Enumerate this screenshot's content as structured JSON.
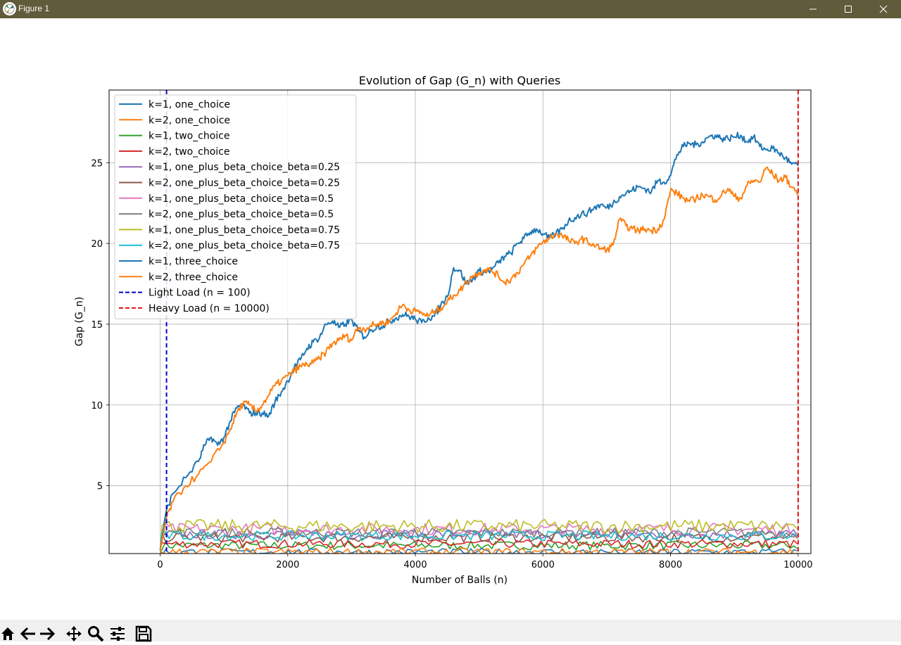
{
  "window": {
    "title": "Figure 1",
    "app_icon": "matplotlib-icon"
  },
  "window_controls": [
    "minimize-icon",
    "maximize-icon",
    "close-icon"
  ],
  "toolbar": {
    "buttons": [
      "home-icon",
      "back-icon",
      "forward-icon",
      "pan-icon",
      "zoom-icon",
      "configure-subplots-icon",
      "save-icon"
    ]
  },
  "chart_data": {
    "type": "line",
    "title": "Evolution of Gap (G_n) with Queries",
    "xlabel": "Number of Balls (n)",
    "ylabel": "Gap (G_n)",
    "xlim": [
      -800,
      10200
    ],
    "ylim": [
      0.8,
      29.5
    ],
    "xticks": [
      0,
      2000,
      4000,
      6000,
      8000,
      10000
    ],
    "yticks": [
      5,
      10,
      15,
      20,
      25
    ],
    "grid": true,
    "legend_position": "upper left",
    "series": [
      {
        "name": "k=1, one_choice",
        "color": "#1f77b4",
        "style": "solid",
        "x": [
          0,
          100,
          200,
          400,
          600,
          700,
          800,
          900,
          1000,
          1100,
          1200,
          1300,
          1400,
          1500,
          1600,
          1700,
          1800,
          1900,
          2000,
          2100,
          2200,
          2300,
          2400,
          2500,
          2600,
          2700,
          2800,
          2900,
          3000,
          3100,
          3200,
          3300,
          3400,
          3500,
          3600,
          3700,
          3800,
          3900,
          4000,
          4100,
          4200,
          4300,
          4400,
          4500,
          4600,
          4700,
          4800,
          4900,
          5000,
          5100,
          5200,
          5300,
          5400,
          5500,
          5600,
          5700,
          5800,
          5900,
          6000,
          6100,
          6200,
          6300,
          6400,
          6500,
          6600,
          6700,
          6800,
          6900,
          7000,
          7100,
          7200,
          7300,
          7400,
          7500,
          7600,
          7700,
          7800,
          7900,
          8000,
          8100,
          8200,
          8300,
          8400,
          8500,
          8600,
          8700,
          8800,
          8900,
          9000,
          9100,
          9200,
          9300,
          9400,
          9500,
          9600,
          9700,
          9800,
          9900,
          10000
        ],
        "y": [
          1,
          3.5,
          4.5,
          5.5,
          6.5,
          7.5,
          8,
          7.5,
          8,
          9,
          9.8,
          10,
          9.5,
          9.5,
          9.5,
          9.3,
          10.2,
          10.8,
          11.5,
          12.3,
          12.8,
          13.5,
          13.9,
          14.2,
          15,
          15.2,
          14.8,
          15,
          15.3,
          14.6,
          14.2,
          14.6,
          14.9,
          14.9,
          15.2,
          15.4,
          15.6,
          15.5,
          15.3,
          15.1,
          15.4,
          15.5,
          16.2,
          16.7,
          18.5,
          18.3,
          17.5,
          17.8,
          18.3,
          18.2,
          18.4,
          18.8,
          19.2,
          19.4,
          20,
          20.3,
          20.7,
          20.9,
          20.6,
          20.3,
          20.6,
          20.9,
          21.4,
          21.6,
          21.8,
          21.9,
          22.2,
          22.4,
          22.2,
          22.5,
          22.9,
          23.1,
          23.3,
          23.5,
          23.4,
          23.2,
          23.9,
          23.8,
          24.2,
          25.5,
          26,
          26.2,
          26.1,
          26.3,
          26.6,
          26.7,
          26.5,
          26.5,
          26.6,
          26.7,
          26.3,
          26.6,
          26,
          25.8,
          25.9,
          25.6,
          25.3,
          24.9,
          24.8
        ]
      },
      {
        "name": "k=2, one_choice",
        "color": "#ff7f0e",
        "style": "solid",
        "x": [
          0,
          100,
          200,
          400,
          600,
          800,
          1000,
          1100,
          1200,
          1300,
          1400,
          1500,
          1600,
          1700,
          1800,
          1900,
          2000,
          2100,
          2200,
          2300,
          2400,
          2500,
          2600,
          2700,
          2800,
          2900,
          3000,
          3100,
          3200,
          3300,
          3400,
          3500,
          3600,
          3700,
          3800,
          3900,
          4000,
          4100,
          4200,
          4300,
          4400,
          4500,
          4600,
          4700,
          4800,
          4900,
          5000,
          5100,
          5200,
          5300,
          5400,
          5500,
          5600,
          5700,
          5800,
          5900,
          6000,
          6100,
          6200,
          6300,
          6400,
          6500,
          6600,
          6700,
          6800,
          6900,
          7000,
          7100,
          7200,
          7300,
          7400,
          7500,
          7600,
          7700,
          7800,
          7900,
          8000,
          8100,
          8200,
          8300,
          8400,
          8500,
          8600,
          8700,
          8800,
          8900,
          9000,
          9100,
          9200,
          9300,
          9400,
          9500,
          9600,
          9700,
          9800,
          9900,
          10000
        ],
        "y": [
          1,
          3,
          4,
          5,
          5.7,
          6.5,
          7.7,
          8.5,
          9.5,
          10.1,
          10,
          9.6,
          10,
          10.6,
          11.2,
          11.5,
          11.8,
          12.1,
          12.4,
          12.5,
          12.6,
          12.9,
          13.3,
          13.8,
          14,
          14.3,
          14,
          14.8,
          14.7,
          14.9,
          15,
          15.1,
          15.2,
          15.7,
          16.2,
          15.9,
          15.8,
          15.7,
          15.5,
          15.8,
          16,
          16.4,
          16.8,
          17.1,
          17.6,
          18,
          18.2,
          18.4,
          18.3,
          18,
          17.6,
          17.8,
          18.2,
          18.7,
          19.2,
          19.7,
          20.1,
          20.3,
          20.6,
          20.5,
          20.2,
          20,
          20.3,
          20.1,
          19.9,
          19.7,
          19.6,
          19.9,
          21.5,
          21.1,
          20.9,
          20.8,
          20.9,
          20.8,
          20.9,
          21.5,
          23.3,
          23.1,
          22.8,
          22.6,
          22.8,
          23,
          22.9,
          22.7,
          23,
          23.4,
          22.9,
          22.8,
          23.6,
          23.9,
          23.8,
          24.7,
          24.3,
          23.9,
          24.1,
          23.5,
          23.1
        ]
      },
      {
        "name": "k=1, two_choice",
        "color": "#2ca02c",
        "style": "solid",
        "x": [],
        "y": [],
        "band": [
          1.3,
          2.2
        ]
      },
      {
        "name": "k=2, two_choice",
        "color": "#d62728",
        "style": "solid",
        "x": [],
        "y": [],
        "band": [
          1.4,
          2.3
        ]
      },
      {
        "name": "k=1, one_plus_beta_choice_beta=0.25",
        "color": "#9467bd",
        "style": "solid",
        "x": [],
        "y": [],
        "band": [
          2.0,
          3.0
        ]
      },
      {
        "name": "k=2, one_plus_beta_choice_beta=0.25",
        "color": "#8c564b",
        "style": "solid",
        "x": [],
        "y": [],
        "band": [
          1.8,
          2.8
        ]
      },
      {
        "name": "k=1, one_plus_beta_choice_beta=0.5",
        "color": "#e377c2",
        "style": "solid",
        "x": [],
        "y": [],
        "band": [
          2.3,
          3.6
        ]
      },
      {
        "name": "k=2, one_plus_beta_choice_beta=0.5",
        "color": "#7f7f7f",
        "style": "solid",
        "x": [],
        "y": [],
        "band": [
          2.1,
          3.1
        ]
      },
      {
        "name": "k=1, one_plus_beta_choice_beta=0.75",
        "color": "#bcbd22",
        "style": "solid",
        "x": [],
        "y": [],
        "band": [
          2.5,
          3.9
        ]
      },
      {
        "name": "k=2, one_plus_beta_choice_beta=0.75",
        "color": "#17becf",
        "style": "solid",
        "x": [],
        "y": [],
        "band": [
          1.9,
          2.9
        ]
      },
      {
        "name": "k=1, three_choice",
        "color": "#1f77b4",
        "style": "solid",
        "x": [],
        "y": [],
        "band": [
          0.9,
          1.6
        ]
      },
      {
        "name": "k=2, three_choice",
        "color": "#ff7f0e",
        "style": "solid",
        "x": [],
        "y": [],
        "band": [
          0.9,
          1.7
        ]
      },
      {
        "name": "Light Load (n = 100)",
        "color": "#0000cc",
        "style": "dashed",
        "vline": 100
      },
      {
        "name": "Heavy Load (n = 10000)",
        "color": "#e01010",
        "style": "dashed",
        "vline": 10000
      }
    ]
  }
}
